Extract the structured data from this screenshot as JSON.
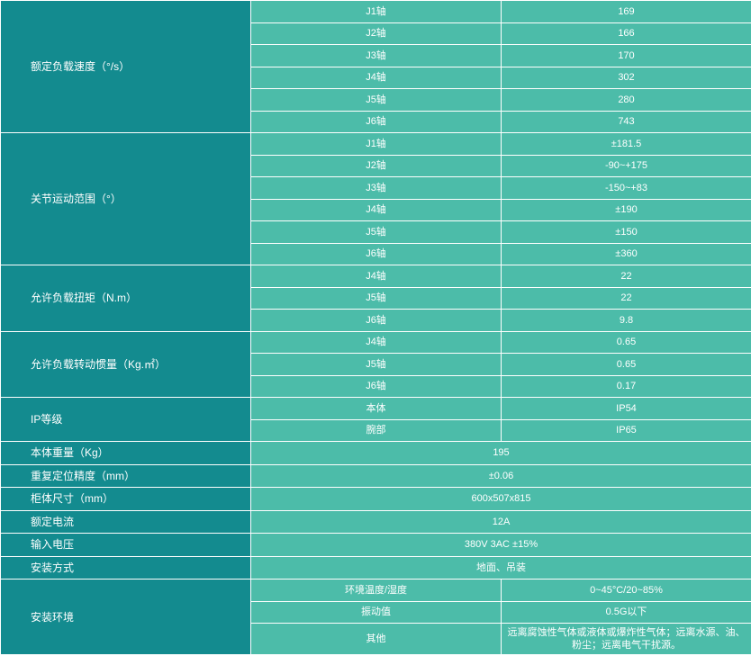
{
  "rated_speed": {
    "label": "额定负载速度（°/s）",
    "rows": [
      {
        "axis": "J1轴",
        "value": "169"
      },
      {
        "axis": "J2轴",
        "value": "166"
      },
      {
        "axis": "J3轴",
        "value": "170"
      },
      {
        "axis": "J4轴",
        "value": "302"
      },
      {
        "axis": "J5轴",
        "value": "280"
      },
      {
        "axis": "J6轴",
        "value": "743"
      }
    ]
  },
  "joint_range": {
    "label": "关节运动范围（°）",
    "rows": [
      {
        "axis": "J1轴",
        "value": "±181.5"
      },
      {
        "axis": "J2轴",
        "value": "-90~+175"
      },
      {
        "axis": "J3轴",
        "value": "-150~+83"
      },
      {
        "axis": "J4轴",
        "value": "±190"
      },
      {
        "axis": "J5轴",
        "value": "±150"
      },
      {
        "axis": "J6轴",
        "value": "±360"
      }
    ]
  },
  "torque": {
    "label": "允许负载扭矩（N.m）",
    "rows": [
      {
        "axis": "J4轴",
        "value": "22"
      },
      {
        "axis": "J5轴",
        "value": "22"
      },
      {
        "axis": "J6轴",
        "value": "9.8"
      }
    ]
  },
  "inertia": {
    "label": "允许负载转动惯量（Kg.㎡）",
    "rows": [
      {
        "axis": "J4轴",
        "value": "0.65"
      },
      {
        "axis": "J5轴",
        "value": "0.65"
      },
      {
        "axis": "J6轴",
        "value": "0.17"
      }
    ]
  },
  "ip": {
    "label": "IP等级",
    "rows": [
      {
        "axis": "本体",
        "value": "IP54"
      },
      {
        "axis": "腕部",
        "value": "IP65"
      }
    ]
  },
  "weight": {
    "label": "本体重量（Kg）",
    "value": "195"
  },
  "repeatability": {
    "label": "重复定位精度（mm）",
    "value": "±0.06"
  },
  "cabinet": {
    "label": "柜体尺寸（mm）",
    "value": "600x507x815"
  },
  "current": {
    "label": "额定电流",
    "value": "12A"
  },
  "voltage": {
    "label": "输入电压",
    "value": "380V 3AC ±15%"
  },
  "mounting": {
    "label": "安装方式",
    "value": "地面、吊装"
  },
  "environment": {
    "label": "安装环境",
    "rows": [
      {
        "axis": "环境温度/湿度",
        "value": "0~45°C/20~85%"
      },
      {
        "axis": "振动值",
        "value": "0.5G以下"
      },
      {
        "axis": "其他",
        "value": "远离腐蚀性气体或液体或爆炸性气体；远离水源、油、粉尘；远离电气干扰源。"
      }
    ]
  }
}
